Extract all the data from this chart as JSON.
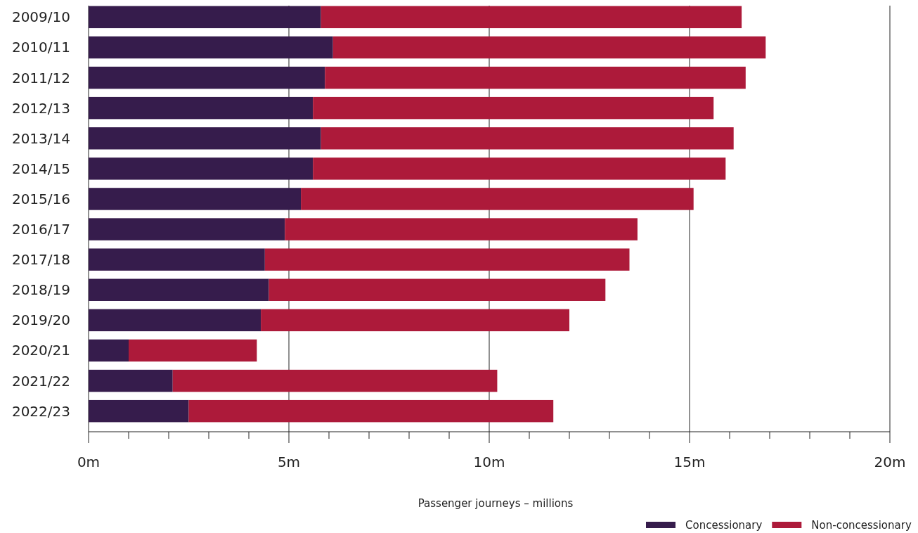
{
  "chart_data": {
    "type": "bar",
    "orientation": "horizontal",
    "stacked": true,
    "categories": [
      "2009/10",
      "2010/11",
      "2011/12",
      "2012/13",
      "2013/14",
      "2014/15",
      "2015/16",
      "2016/17",
      "2017/18",
      "2018/19",
      "2019/20",
      "2020/21",
      "2021/22",
      "2022/23"
    ],
    "series": [
      {
        "name": "Concessionary",
        "color": "#361c4c",
        "values": [
          5.8,
          6.1,
          5.9,
          5.6,
          5.8,
          5.6,
          5.3,
          4.9,
          4.4,
          4.5,
          4.3,
          1.0,
          2.1,
          2.5
        ]
      },
      {
        "name": "Non-concessionary",
        "color": "#ad1a3a",
        "values": [
          10.5,
          10.8,
          10.5,
          10.0,
          10.3,
          10.3,
          9.8,
          8.8,
          9.1,
          8.4,
          7.7,
          3.2,
          8.1,
          9.1
        ]
      }
    ],
    "xlim": [
      0,
      20
    ],
    "xticks": [
      {
        "value": 0,
        "label": "0m"
      },
      {
        "value": 1,
        "label": null
      },
      {
        "value": 2,
        "label": null
      },
      {
        "value": 3,
        "label": null
      },
      {
        "value": 4,
        "label": null
      },
      {
        "value": 5,
        "label": "5m"
      },
      {
        "value": 6,
        "label": null
      },
      {
        "value": 7,
        "label": null
      },
      {
        "value": 8,
        "label": null
      },
      {
        "value": 9,
        "label": null
      },
      {
        "value": 10,
        "label": "10m"
      },
      {
        "value": 11,
        "label": null
      },
      {
        "value": 12,
        "label": null
      },
      {
        "value": 13,
        "label": null
      },
      {
        "value": 14,
        "label": null
      },
      {
        "value": 15,
        "label": "15m"
      },
      {
        "value": 16,
        "label": null
      },
      {
        "value": 17,
        "label": null
      },
      {
        "value": 18,
        "label": null
      },
      {
        "value": 19,
        "label": null
      },
      {
        "value": 20,
        "label": "20m"
      }
    ],
    "xlabel": "Passenger journeys – millions",
    "grid": "x",
    "legend": "bottom right"
  }
}
